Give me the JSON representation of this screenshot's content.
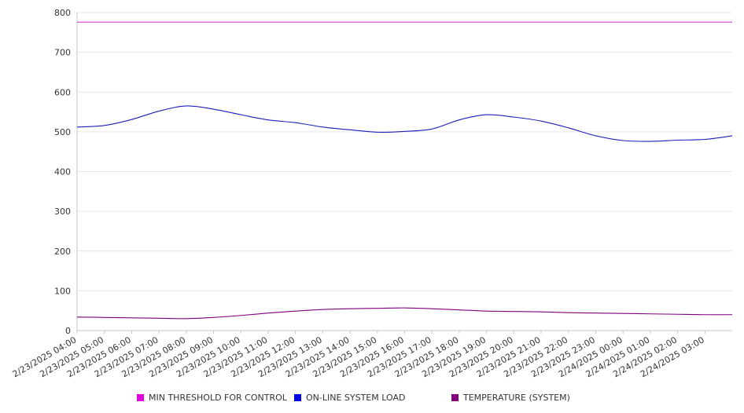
{
  "chart_data": {
    "type": "line",
    "title": "",
    "xlabel": "",
    "ylabel": "",
    "ylim": [
      0,
      800
    ],
    "y_ticks": [
      0,
      100,
      200,
      300,
      400,
      500,
      600,
      700,
      800
    ],
    "x_range": [
      "2/23/2025 04:00",
      "2/24/2025 04:00"
    ],
    "x_tick_labels": [
      "2/23/2025 04:00",
      "2/23/2025 05:00",
      "2/23/2025 06:00",
      "2/23/2025 07:00",
      "2/23/2025 08:00",
      "2/23/2025 09:00",
      "2/23/2025 10:00",
      "2/23/2025 11:00",
      "2/23/2025 12:00",
      "2/23/2025 13:00",
      "2/23/2025 14:00",
      "2/23/2025 15:00",
      "2/23/2025 16:00",
      "2/23/2025 17:00",
      "2/23/2025 18:00",
      "2/23/2025 19:00",
      "2/23/2025 20:00",
      "2/23/2025 21:00",
      "2/23/2025 22:00",
      "2/23/2025 23:00",
      "2/24/2025 00:00",
      "2/24/2025 01:00",
      "2/24/2025 02:00",
      "2/24/2025 03:00"
    ],
    "grid": "horizontal",
    "legend_position": "bottom",
    "series": [
      {
        "name": "MIN THRESHOLD FOR CONTROL",
        "color": "#e000e0",
        "line_color": "#d23fd2",
        "x": [
          "2/23/2025 04:00",
          "2/24/2025 04:00"
        ],
        "values": [
          776,
          776
        ]
      },
      {
        "name": "ON-LINE SYSTEM LOAD",
        "color": "#0000e0",
        "line_color": "#1c1cb8",
        "x": [
          "2/23/2025 04:00",
          "2/23/2025 05:00",
          "2/23/2025 06:00",
          "2/23/2025 07:00",
          "2/23/2025 08:00",
          "2/23/2025 09:00",
          "2/23/2025 10:00",
          "2/23/2025 11:00",
          "2/23/2025 12:00",
          "2/23/2025 13:00",
          "2/23/2025 14:00",
          "2/23/2025 15:00",
          "2/23/2025 16:00",
          "2/23/2025 17:00",
          "2/23/2025 18:00",
          "2/23/2025 19:00",
          "2/23/2025 20:00",
          "2/23/2025 21:00",
          "2/23/2025 22:00",
          "2/23/2025 23:00",
          "2/24/2025 00:00",
          "2/24/2025 01:00",
          "2/24/2025 02:00",
          "2/24/2025 03:00",
          "2/24/2025 04:00"
        ],
        "values": [
          512,
          516,
          531,
          552,
          565,
          557,
          543,
          530,
          523,
          512,
          505,
          499,
          501,
          507,
          530,
          543,
          537,
          527,
          510,
          490,
          478,
          476,
          479,
          481,
          490
        ]
      },
      {
        "name": "TEMPERATURE (SYSTEM)",
        "color": "#800080",
        "line_color": "#800080",
        "x": [
          "2/23/2025 04:00",
          "2/23/2025 05:00",
          "2/23/2025 06:00",
          "2/23/2025 07:00",
          "2/23/2025 08:00",
          "2/23/2025 09:00",
          "2/23/2025 10:00",
          "2/23/2025 11:00",
          "2/23/2025 12:00",
          "2/23/2025 13:00",
          "2/23/2025 14:00",
          "2/23/2025 15:00",
          "2/23/2025 16:00",
          "2/23/2025 17:00",
          "2/23/2025 18:00",
          "2/23/2025 19:00",
          "2/23/2025 20:00",
          "2/23/2025 21:00",
          "2/23/2025 22:00",
          "2/23/2025 23:00",
          "2/24/2025 00:00",
          "2/24/2025 01:00",
          "2/24/2025 02:00",
          "2/24/2025 03:00",
          "2/24/2025 04:00"
        ],
        "values": [
          34,
          33,
          32,
          31,
          30,
          33,
          38,
          44,
          49,
          53,
          55,
          56,
          57,
          55,
          52,
          49,
          48,
          47,
          45,
          44,
          43,
          42,
          41,
          40,
          40
        ]
      }
    ]
  }
}
